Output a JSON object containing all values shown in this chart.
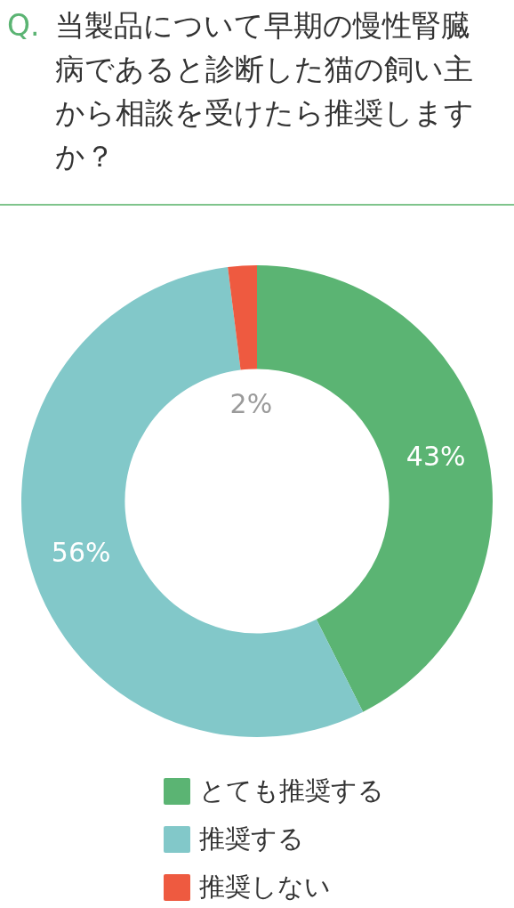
{
  "chart_data": {
    "type": "donut",
    "title": "Q. 当製品について早期の慢性腎臓病であると診断した猫の飼い主から相談を受けたら推奨しますか？",
    "categories": [
      "とても推奨する",
      "推奨する",
      "推奨しない"
    ],
    "values": [
      43,
      56,
      2
    ],
    "colors": [
      "#5bb473",
      "#82c8c9",
      "#ee5a40"
    ],
    "value_labels": [
      "43%",
      "56%",
      "2%"
    ],
    "legend": "bottom"
  }
}
